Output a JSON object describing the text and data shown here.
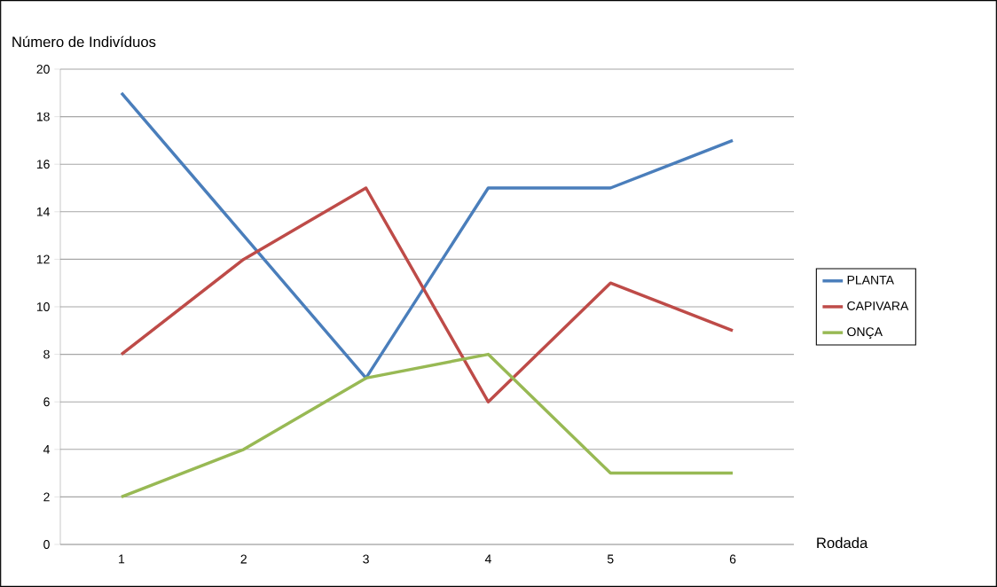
{
  "chart_data": {
    "type": "line",
    "ylabel": "Número de Indivíduos",
    "xlabel": "Rodada",
    "categories": [
      "1",
      "2",
      "3",
      "4",
      "5",
      "6"
    ],
    "series": [
      {
        "name": "PLANTA",
        "color": "#4a7ebb",
        "values": [
          19,
          13,
          7,
          15,
          15,
          17
        ]
      },
      {
        "name": "CAPIVARA",
        "color": "#be4b48",
        "values": [
          8,
          12,
          15,
          6,
          11,
          9
        ]
      },
      {
        "name": "ONÇA",
        "color": "#98b954",
        "values": [
          2,
          4,
          7,
          8,
          3,
          3
        ]
      }
    ],
    "ylim": [
      0,
      20
    ],
    "yticks": [
      0,
      2,
      4,
      6,
      8,
      10,
      12,
      14,
      16,
      18,
      20
    ],
    "grid": "y",
    "legend": "right",
    "marker": "none",
    "line_style": "solid"
  }
}
